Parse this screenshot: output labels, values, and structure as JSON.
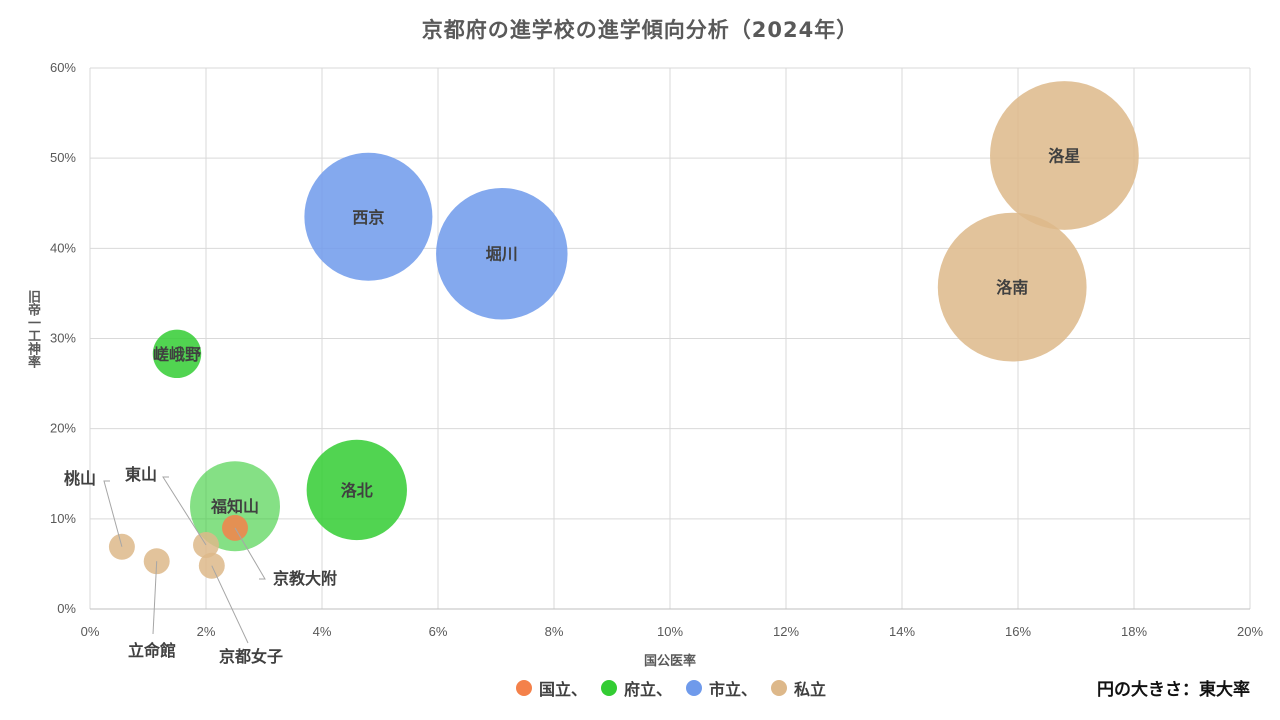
{
  "chart_data": {
    "type": "bubble",
    "title": "京都府の進学校の進学傾向分析（2024年）",
    "xlabel": "国公医率",
    "ylabel": "旧帝一工神率",
    "xlim": [
      0,
      20
    ],
    "ylim": [
      0,
      60
    ],
    "x_ticks": [
      "0%",
      "2%",
      "4%",
      "6%",
      "8%",
      "10%",
      "12%",
      "14%",
      "16%",
      "18%",
      "20%"
    ],
    "y_ticks": [
      "0%",
      "10%",
      "20%",
      "30%",
      "40%",
      "50%",
      "60%"
    ],
    "grid": true,
    "legend_position": "bottom",
    "size_note": "円の大きさ：東大率",
    "categories": [
      {
        "key": "national",
        "label": "国立、",
        "color": "#F4814A"
      },
      {
        "key": "prefectural",
        "label": "府立、",
        "color": "#33CC33"
      },
      {
        "key": "municipal",
        "label": "市立、",
        "color": "#6F9AEB"
      },
      {
        "key": "private",
        "label": "私立",
        "color": "#DDB88A"
      }
    ],
    "points": [
      {
        "name": "洛星",
        "category": "private",
        "x": 16.8,
        "y": 50.3,
        "size": 4.3
      },
      {
        "name": "洛南",
        "category": "private",
        "x": 15.9,
        "y": 35.7,
        "size": 4.3
      },
      {
        "name": "西京",
        "category": "municipal",
        "x": 4.8,
        "y": 43.5,
        "size": 3.7
      },
      {
        "name": "堀川",
        "category": "municipal",
        "x": 7.1,
        "y": 39.4,
        "size": 3.8
      },
      {
        "name": "嵯峨野",
        "category": "prefectural",
        "x": 1.5,
        "y": 28.3,
        "size": 1.4
      },
      {
        "name": "洛北",
        "category": "prefectural",
        "x": 4.6,
        "y": 13.2,
        "size": 2.9
      },
      {
        "name": "福知山",
        "category": "prefectural",
        "x": 2.5,
        "y": 11.4,
        "size": 2.6,
        "alpha": 0.6
      },
      {
        "name": "京教大附",
        "category": "national",
        "x": 2.5,
        "y": 9.0,
        "size": 0.75
      },
      {
        "name": "桃山",
        "category": "private",
        "x": 0.55,
        "y": 6.9,
        "size": 0.75
      },
      {
        "name": "立命館",
        "category": "private",
        "x": 1.15,
        "y": 5.3,
        "size": 0.75
      },
      {
        "name": "東山",
        "category": "private",
        "x": 2.0,
        "y": 7.1,
        "size": 0.75
      },
      {
        "name": "京都女子",
        "category": "private",
        "x": 2.1,
        "y": 4.8,
        "size": 0.75
      }
    ]
  }
}
